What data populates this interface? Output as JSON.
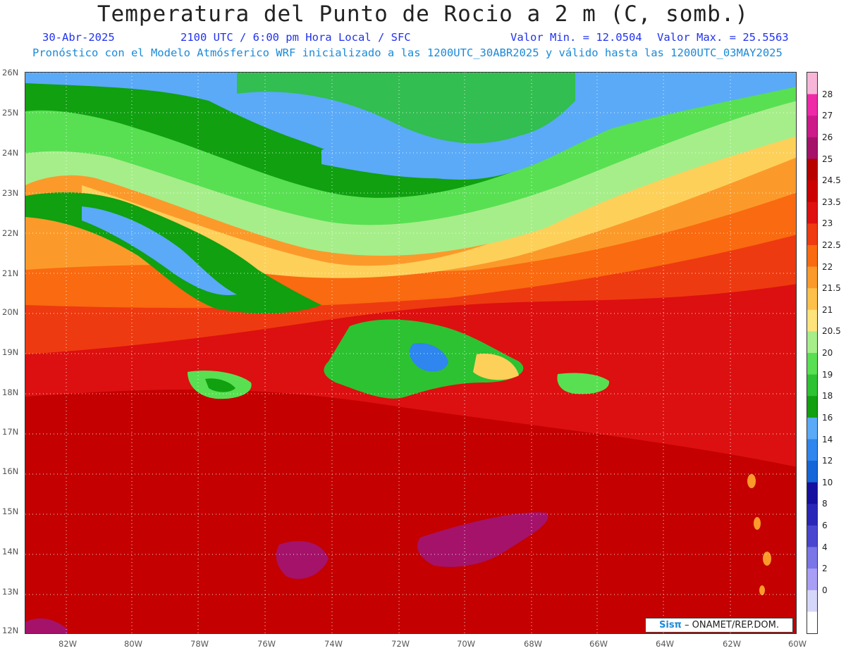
{
  "header": {
    "title": "Temperatura del Punto de Rocio a 2 m (C, somb.)",
    "date": "30-Abr-2025",
    "time": "2100 UTC / 6:00 pm Hora Local / SFC",
    "min": "Valor Min. = 12.0504",
    "max": "Valor Max. = 25.5563",
    "forecast": "Pronóstico con el Modelo Atmósferico WRF inicializado a las 1200UTC_30ABR2025 y válido hasta las  1200UTC_03MAY2025"
  },
  "axes": {
    "lat_labels": [
      "26N",
      "25N",
      "24N",
      "23N",
      "22N",
      "21N",
      "20N",
      "19N",
      "18N",
      "17N",
      "16N",
      "15N",
      "14N",
      "13N",
      "12N"
    ],
    "lon_labels": [
      "82W",
      "80W",
      "78W",
      "76W",
      "74W",
      "72W",
      "70W",
      "68W",
      "66W",
      "64W",
      "62W",
      "60W"
    ]
  },
  "colorbar": {
    "labels": [
      "28",
      "27",
      "26",
      "25",
      "24.5",
      "23.5",
      "23",
      "22.5",
      "22",
      "21.5",
      "21",
      "20.5",
      "20",
      "19",
      "18",
      "16",
      "14",
      "12",
      "10",
      "8",
      "6",
      "4",
      "2",
      "0"
    ],
    "colors": [
      "#f7b6d8",
      "#ee2aa8",
      "#cc1a8a",
      "#a5126a",
      "#b80000",
      "#cc0000",
      "#e01010",
      "#f03a10",
      "#fa6a10",
      "#fb9a2a",
      "#fdc04a",
      "#fee37a",
      "#a6ee8a",
      "#58e052",
      "#2cc232",
      "#10a010",
      "#5aaaf8",
      "#2e86ee",
      "#1566d8",
      "#1610a0",
      "#2a26b8",
      "#4a46d0",
      "#7a76e8",
      "#a89ef6",
      "#d6d6fa",
      "#ffffff"
    ]
  },
  "credit": {
    "brand": "Sisπ",
    "text": " – ONAMET/REP.DOM."
  }
}
